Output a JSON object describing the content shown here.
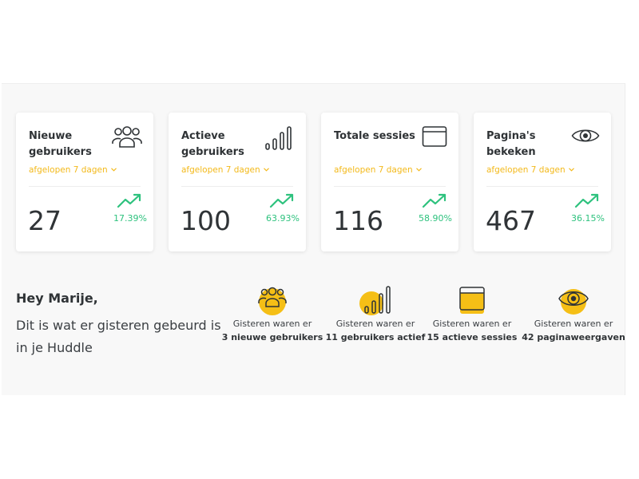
{
  "cards": [
    {
      "title": "Nieuwe gebruikers",
      "icon": "users-icon",
      "period": "afgelopen 7 dagen",
      "value": "27",
      "change": "17.39%"
    },
    {
      "title": "Actieve gebruikers",
      "icon": "signal-bars-icon",
      "period": "afgelopen 7 dagen",
      "value": "100",
      "change": "63.93%"
    },
    {
      "title": "Totale sessies",
      "icon": "browser-window-icon",
      "period": "afgelopen 7 dagen",
      "value": "116",
      "change": "58.90%"
    },
    {
      "title": "Pagina's bekeken",
      "icon": "eye-icon",
      "period": "afgelopen 7 dagen",
      "value": "467",
      "change": "36.15%"
    }
  ],
  "greeting": {
    "title": "Hey Marije,",
    "text": "Dit is wat er gisteren gebeurd is in je Huddle"
  },
  "yesterday": [
    {
      "icon": "users-icon",
      "line1": "Gisteren waren er",
      "line2": "3 nieuwe gebruikers"
    },
    {
      "icon": "signal-bars-icon",
      "line1": "Gisteren waren er",
      "line2": "11 gebruikers actief"
    },
    {
      "icon": "browser-window-icon",
      "line1": "Gisteren waren er",
      "line2": "15 actieve sessies"
    },
    {
      "icon": "eye-icon",
      "line1": "Gisteren waren er",
      "line2": "42 paginaweergaven"
    }
  ],
  "colors": {
    "accent": "#f3b91a",
    "positive": "#2ec27e",
    "text": "#2f3336"
  }
}
